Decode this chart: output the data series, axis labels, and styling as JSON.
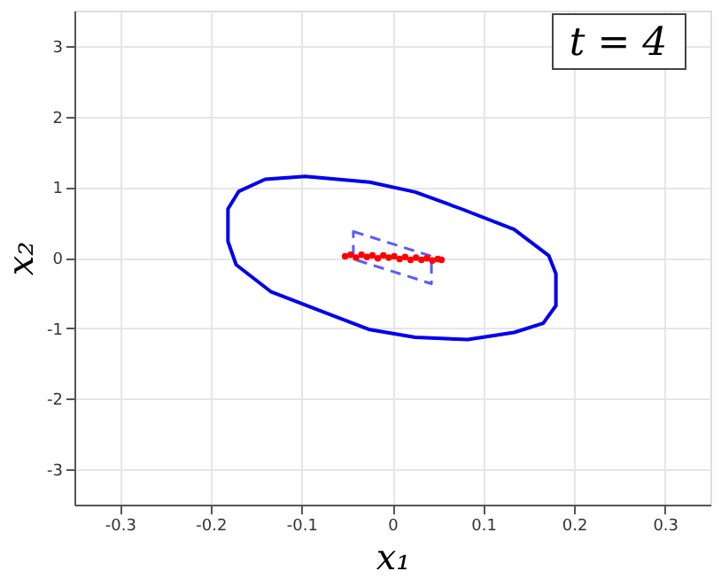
{
  "chart_data": {
    "type": "scatter",
    "xlabel": "x₁",
    "ylabel": "x₂",
    "annotations": [
      "t = 4"
    ],
    "xlim": [
      -0.35,
      0.35
    ],
    "xticks": [
      -0.3,
      -0.2,
      -0.1,
      0,
      0.1,
      0.2,
      0.3
    ],
    "ylim": [
      -3.5,
      3.5
    ],
    "yticks": [
      -3,
      -2,
      -1,
      0,
      1,
      2,
      3
    ],
    "grid": true,
    "series": [
      {
        "color": "#ff0000",
        "marker": "circle",
        "x": [
          -0.052,
          -0.046,
          -0.04,
          -0.034,
          -0.028,
          -0.022,
          -0.016,
          -0.01,
          -0.004,
          0.002,
          0.008,
          0.014,
          0.02,
          0.026,
          0.032,
          0.038,
          0.044,
          0.05,
          0.054
        ],
        "values": [
          0.02,
          0.04,
          0.0,
          0.04,
          0.01,
          0.03,
          -0.01,
          0.03,
          0.0,
          0.02,
          -0.02,
          0.01,
          -0.03,
          0.0,
          -0.03,
          -0.01,
          -0.04,
          -0.02,
          -0.03
        ]
      }
    ]
  }
}
